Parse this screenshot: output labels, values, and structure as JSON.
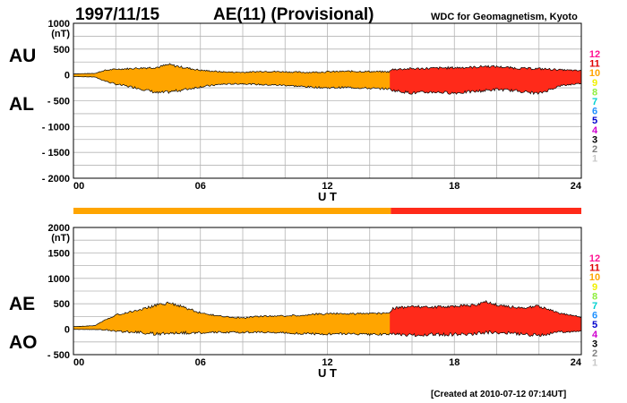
{
  "header": {
    "date": "1997/11/15",
    "title": "AE(11) (Provisional)",
    "source": "WDC for Geomagnetism, Kyoto"
  },
  "footer": {
    "created": "[Created at 2010-07-12 07:14UT]"
  },
  "legend": {
    "items": [
      {
        "label": "12",
        "color": "#ff1493"
      },
      {
        "label": "11",
        "color": "#e00000"
      },
      {
        "label": "10",
        "color": "#ffa500"
      },
      {
        "label": "9",
        "color": "#f0f000"
      },
      {
        "label": "8",
        "color": "#90ee40"
      },
      {
        "label": "7",
        "color": "#00d0d0"
      },
      {
        "label": "6",
        "color": "#1e90ff"
      },
      {
        "label": "5",
        "color": "#0000cd"
      },
      {
        "label": "4",
        "color": "#d000d0"
      },
      {
        "label": "3",
        "color": "#000000"
      },
      {
        "label": "2",
        "color": "#808080"
      },
      {
        "label": "1",
        "color": "#c8c8c8"
      }
    ]
  },
  "station_bar": {
    "segments": [
      {
        "from": 0,
        "to": 15,
        "color": "#ffa500"
      },
      {
        "from": 15,
        "to": 24,
        "color": "#ff2a1a"
      }
    ]
  },
  "chart_data": [
    {
      "type": "area",
      "panel": "upper",
      "side_labels": [
        "AU",
        "AL"
      ],
      "unit": "(nT)",
      "xlabel": "U T",
      "xlim": [
        0,
        24
      ],
      "ylim": [
        -2000,
        1000
      ],
      "xticks": [
        0,
        6,
        12,
        18,
        24
      ],
      "xtick_labels": [
        "00",
        "06",
        "12",
        "18",
        "24"
      ],
      "yticks": [
        1000,
        500,
        0,
        -500,
        -1000,
        -1500,
        -2000
      ],
      "ytick_labels": [
        "1000",
        "500",
        "0",
        "- 500",
        "- 1000",
        "- 1500",
        "- 2000"
      ],
      "grid": true,
      "x": [
        0,
        1,
        1.5,
        2,
        3,
        4,
        4.5,
        5,
        6,
        7,
        8,
        9,
        10,
        11,
        12,
        13,
        14,
        14.9,
        15.1,
        16,
        17,
        18,
        19,
        19.5,
        20,
        21,
        22,
        23,
        24
      ],
      "series": [
        {
          "name": "AU",
          "values": [
            20,
            30,
            90,
            110,
            130,
            150,
            200,
            160,
            90,
            60,
            50,
            70,
            60,
            50,
            60,
            70,
            65,
            60,
            110,
            120,
            130,
            140,
            150,
            170,
            160,
            130,
            120,
            100,
            80
          ]
        },
        {
          "name": "AL",
          "values": [
            -30,
            -40,
            -120,
            -180,
            -250,
            -350,
            -330,
            -300,
            -230,
            -180,
            -170,
            -190,
            -200,
            -230,
            -250,
            -240,
            -260,
            -270,
            -300,
            -350,
            -330,
            -350,
            -320,
            -300,
            -280,
            -310,
            -360,
            -210,
            -160
          ]
        }
      ],
      "segments": [
        {
          "from": 0,
          "to": 15,
          "color": "#ffa500"
        },
        {
          "from": 15,
          "to": 24,
          "color": "#ff2a1a"
        }
      ]
    },
    {
      "type": "area",
      "panel": "lower",
      "side_labels": [
        "AE",
        "AO"
      ],
      "unit": "(nT)",
      "xlabel": "U T",
      "xlim": [
        0,
        24
      ],
      "ylim": [
        -500,
        2000
      ],
      "xticks": [
        0,
        6,
        12,
        18,
        24
      ],
      "xtick_labels": [
        "00",
        "06",
        "12",
        "18",
        "24"
      ],
      "yticks": [
        2000,
        1500,
        1000,
        500,
        0,
        -500
      ],
      "ytick_labels": [
        "2000",
        "1500",
        "1000",
        "500",
        "0",
        "- 500"
      ],
      "grid": true,
      "x": [
        0,
        1,
        1.5,
        2,
        3,
        4,
        4.5,
        5,
        6,
        7,
        8,
        9,
        10,
        11,
        12,
        13,
        14,
        14.9,
        15.1,
        16,
        17,
        18,
        19,
        19.5,
        20,
        21,
        22,
        23,
        24
      ],
      "series": [
        {
          "name": "AE",
          "values": [
            50,
            70,
            180,
            280,
            370,
            480,
            520,
            460,
            320,
            250,
            220,
            260,
            260,
            280,
            310,
            300,
            310,
            320,
            410,
            450,
            430,
            460,
            470,
            550,
            480,
            420,
            450,
            310,
            240
          ]
        },
        {
          "name": "AO",
          "values": [
            -5,
            -5,
            -15,
            -35,
            -60,
            -100,
            -65,
            -70,
            -70,
            -60,
            -60,
            -60,
            -70,
            -90,
            -95,
            -85,
            -100,
            -105,
            -95,
            -115,
            -100,
            -105,
            -85,
            -65,
            -60,
            -90,
            -120,
            -55,
            -40
          ]
        }
      ],
      "segments": [
        {
          "from": 0,
          "to": 15,
          "color": "#ffa500"
        },
        {
          "from": 15,
          "to": 24,
          "color": "#ff2a1a"
        }
      ]
    }
  ]
}
